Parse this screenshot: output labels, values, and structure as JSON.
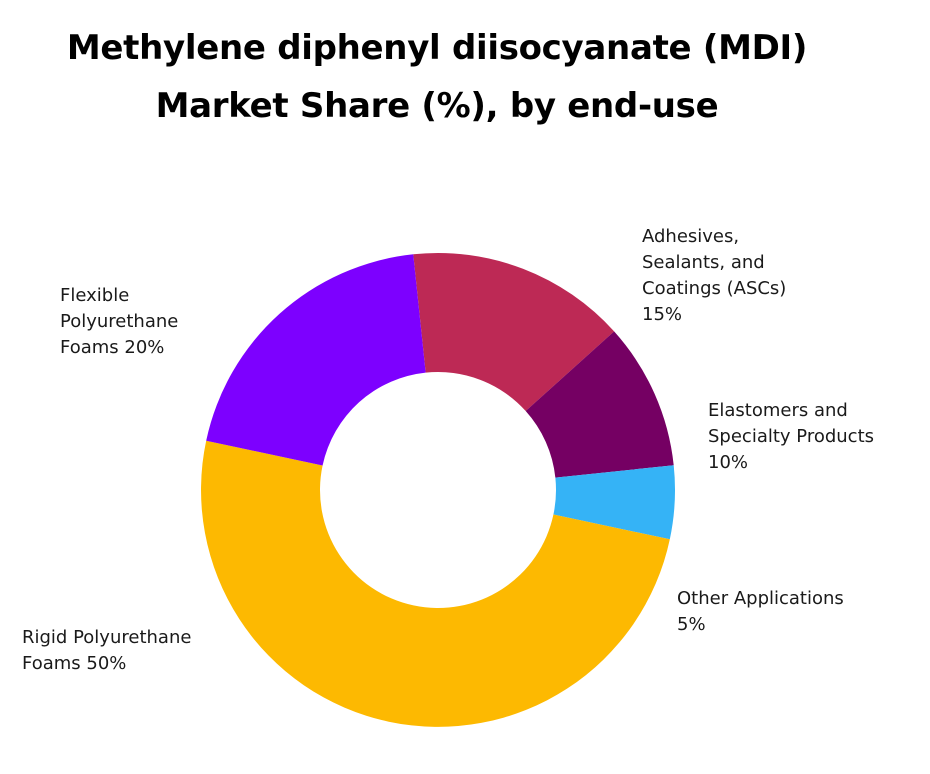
{
  "title_line1": "Methylene diphenyl diisocyanate (MDI)",
  "title_line2": "Market Share (%), by end-use",
  "chart_data": {
    "type": "pie",
    "donut": true,
    "title": "Methylene diphenyl diisocyanate (MDI) Market Share (%), by end-use",
    "categories": [
      "Adhesives, Sealants, and Coatings (ASCs)",
      "Elastomers and Specialty Products",
      "Other Applications",
      "Rigid Polyurethane Foams",
      "Flexible Polyurethane Foams"
    ],
    "values": [
      15,
      10,
      5,
      50,
      20
    ],
    "colors": [
      "#bd2955",
      "#750063",
      "#35b3f6",
      "#fdb901",
      "#7d00ff"
    ],
    "legend": "none"
  },
  "labels": {
    "asc": {
      "lines": [
        "Adhesives,",
        "Sealants, and",
        "Coatings (ASCs)",
        "15%"
      ]
    },
    "elastomers": {
      "lines": [
        "Elastomers and",
        "Specialty Products",
        "10%"
      ]
    },
    "other": {
      "lines": [
        "Other Applications",
        "5%"
      ]
    },
    "rigid": {
      "lines": [
        "Rigid Polyurethane",
        "Foams 50%"
      ]
    },
    "flexible": {
      "lines": [
        "Flexible",
        "Polyurethane",
        "Foams 20%"
      ]
    }
  }
}
